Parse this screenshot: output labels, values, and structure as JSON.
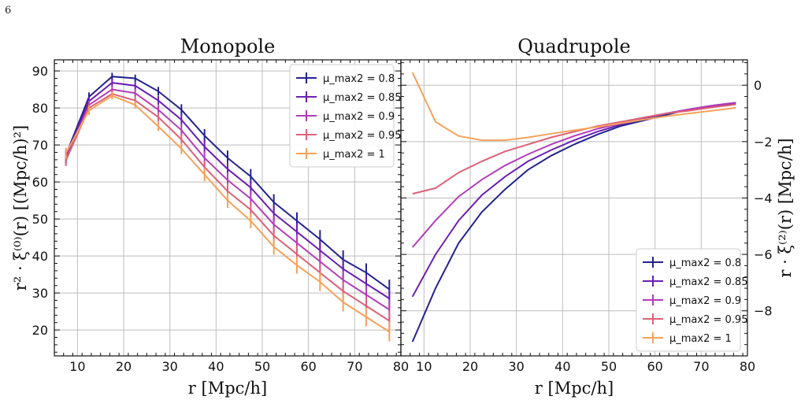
{
  "page_number": "6",
  "colors": {
    "mu_0.8": "#23238f",
    "mu_0.85": "#6a1fb3",
    "mu_0.9": "#b33db8",
    "mu_0.95": "#de6178",
    "mu_1": "#f5a25a"
  },
  "legend_labels": [
    "μ_max2 = 0.8",
    "μ_max2 = 0.85",
    "μ_max2 = 0.9",
    "μ_max2 = 0.95",
    "μ_max2 = 1"
  ],
  "chart_data": [
    {
      "type": "line",
      "title": "Monopole",
      "xlabel": "r [Mpc/h]",
      "ylabel": "r² · ξ⁽⁰⁾(r) [(Mpc/h)²]",
      "xlim": [
        5,
        80
      ],
      "ylim": [
        13,
        93
      ],
      "xticks": [
        10,
        20,
        30,
        40,
        50,
        60,
        70,
        80
      ],
      "yticks": [
        20,
        30,
        40,
        50,
        60,
        70,
        80,
        90
      ],
      "grid": true,
      "legend_position": "top-right",
      "x": [
        7.5,
        12.5,
        17.5,
        22.5,
        27.5,
        32.5,
        37.5,
        42.5,
        47.5,
        52.5,
        57.5,
        62.5,
        67.5,
        72.5,
        77.5
      ],
      "series": [
        {
          "name": "μ_max2 = 0.8",
          "values": [
            67.3,
            83.0,
            88.5,
            88.0,
            84.5,
            79.5,
            72.5,
            66.5,
            61.5,
            54.5,
            49.5,
            44.5,
            39.0,
            35.5,
            31.0
          ],
          "errors": [
            1.5,
            1.2,
            1.0,
            1.0,
            1.2,
            1.5,
            1.8,
            2.0,
            2.0,
            2.2,
            2.3,
            2.5,
            2.5,
            2.5,
            2.6
          ]
        },
        {
          "name": "μ_max2 = 0.85",
          "values": [
            66.8,
            81.8,
            86.8,
            86.0,
            82.0,
            76.8,
            69.5,
            63.5,
            58.5,
            51.5,
            46.5,
            41.5,
            36.5,
            32.5,
            28.5
          ],
          "errors": [
            1.5,
            1.2,
            1.0,
            1.0,
            1.2,
            1.5,
            1.8,
            2.0,
            2.0,
            2.2,
            2.3,
            2.5,
            2.5,
            2.5,
            2.6
          ]
        },
        {
          "name": "μ_max2 = 0.9",
          "values": [
            66.3,
            80.8,
            85.0,
            84.0,
            79.5,
            74.0,
            66.5,
            60.5,
            55.5,
            48.5,
            43.5,
            38.5,
            33.5,
            29.5,
            25.5
          ],
          "errors": [
            1.5,
            1.2,
            1.0,
            1.0,
            1.2,
            1.5,
            1.8,
            2.0,
            2.0,
            2.2,
            2.3,
            2.5,
            2.5,
            2.5,
            2.6
          ]
        },
        {
          "name": "μ_max2 = 0.95",
          "values": [
            65.8,
            80.0,
            83.8,
            82.0,
            77.5,
            71.5,
            64.0,
            57.5,
            52.5,
            45.5,
            40.5,
            35.5,
            30.5,
            26.5,
            22.5
          ],
          "errors": [
            1.5,
            1.2,
            1.0,
            1.0,
            1.2,
            1.5,
            1.8,
            2.0,
            2.0,
            2.2,
            2.3,
            2.5,
            2.5,
            2.5,
            2.6
          ]
        },
        {
          "name": "μ_max2 = 1",
          "values": [
            67.8,
            79.3,
            83.3,
            80.8,
            75.0,
            69.0,
            62.0,
            55.0,
            49.5,
            42.5,
            37.5,
            33.0,
            27.5,
            23.5,
            19.5
          ],
          "errors": [
            1.5,
            1.2,
            1.0,
            1.0,
            1.2,
            1.5,
            1.8,
            2.0,
            2.0,
            2.2,
            2.3,
            2.5,
            2.5,
            2.5,
            2.6
          ]
        }
      ]
    },
    {
      "type": "line",
      "title": "Quadrupole",
      "xlabel": "r [Mpc/h]",
      "ylabel": "r · ξ⁽²⁾(r) [Mpc/h]",
      "xlim": [
        5,
        80
      ],
      "ylim": [
        -9.6,
        0.9
      ],
      "xticks": [
        10,
        20,
        30,
        40,
        50,
        60,
        70,
        80
      ],
      "yticks": [
        -8,
        -6,
        -4,
        -2,
        0
      ],
      "y_axis_side": "right",
      "grid": true,
      "legend_position": "bottom-right",
      "x": [
        7.5,
        12.5,
        17.5,
        22.5,
        27.5,
        32.5,
        37.5,
        42.5,
        47.5,
        52.5,
        57.5,
        62.5,
        67.5,
        72.5,
        77.5
      ],
      "series": [
        {
          "name": "μ_max2 = 0.8",
          "values": [
            -9.1,
            -7.2,
            -5.6,
            -4.5,
            -3.7,
            -3.0,
            -2.5,
            -2.1,
            -1.75,
            -1.45,
            -1.25,
            -1.05,
            -0.85,
            -0.75,
            -0.65
          ]
        },
        {
          "name": "μ_max2 = 0.85",
          "values": [
            -7.5,
            -6.0,
            -4.8,
            -3.9,
            -3.25,
            -2.7,
            -2.3,
            -1.95,
            -1.65,
            -1.4,
            -1.2,
            -1.0,
            -0.85,
            -0.72,
            -0.62
          ]
        },
        {
          "name": "μ_max2 = 0.9",
          "values": [
            -5.75,
            -4.8,
            -3.95,
            -3.35,
            -2.85,
            -2.45,
            -2.1,
            -1.8,
            -1.55,
            -1.35,
            -1.15,
            -1.0,
            -0.85,
            -0.72,
            -0.62
          ]
        },
        {
          "name": "μ_max2 = 0.95",
          "values": [
            -3.85,
            -3.65,
            -3.1,
            -2.7,
            -2.35,
            -2.1,
            -1.85,
            -1.65,
            -1.45,
            -1.3,
            -1.15,
            -1.0,
            -0.9,
            -0.78,
            -0.68
          ]
        },
        {
          "name": "μ_max2 = 1",
          "values": [
            0.45,
            -1.3,
            -1.8,
            -1.95,
            -1.95,
            -1.85,
            -1.72,
            -1.6,
            -1.48,
            -1.35,
            -1.22,
            -1.1,
            -1.0,
            -0.9,
            -0.8
          ]
        }
      ]
    }
  ]
}
